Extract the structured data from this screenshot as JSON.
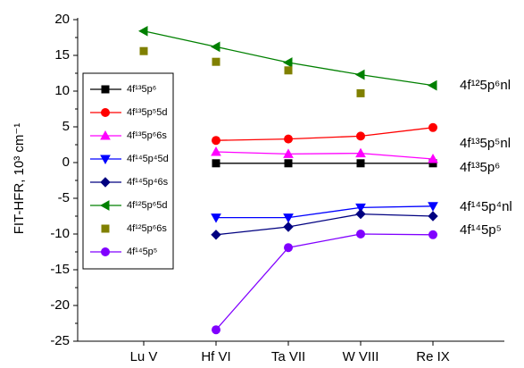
{
  "chart_data": {
    "type": "line",
    "y_label": "FIT-HFR, 10³ cm⁻¹",
    "categories": [
      "Lu V",
      "Hf VI",
      "Ta VII",
      "W VIII",
      "Re IX"
    ],
    "ylim": [
      -25,
      20
    ],
    "yticks": [
      -25,
      -20,
      -15,
      -10,
      -5,
      0,
      5,
      10,
      15,
      20
    ],
    "series": [
      {
        "name": "4f¹³5p⁶",
        "color": "#000000",
        "marker": "square",
        "line": true,
        "values": [
          null,
          -0.1,
          -0.1,
          -0.1,
          -0.1
        ]
      },
      {
        "name": "4f¹³5p⁵5d",
        "color": "#ff0000",
        "marker": "circle",
        "line": true,
        "values": [
          null,
          3.1,
          3.3,
          3.7,
          4.9
        ]
      },
      {
        "name": "4f¹³5p⁶6s",
        "color": "#ff00ff",
        "marker": "triangle-up",
        "line": true,
        "values": [
          null,
          1.5,
          1.2,
          1.3,
          0.5
        ]
      },
      {
        "name": "4f¹⁴5p⁴5d",
        "color": "#0000ff",
        "marker": "triangle-down",
        "line": true,
        "values": [
          null,
          -7.7,
          -7.7,
          -6.3,
          -6.1
        ]
      },
      {
        "name": "4f¹⁴5p⁴6s",
        "color": "#000080",
        "marker": "diamond",
        "line": true,
        "values": [
          null,
          -10.1,
          -9.0,
          -7.2,
          -7.5
        ]
      },
      {
        "name": "4f¹²5p⁶5d",
        "color": "#008000",
        "marker": "triangle-left",
        "line": true,
        "values": [
          18.4,
          16.2,
          14.0,
          12.3,
          10.8
        ]
      },
      {
        "name": "4f¹²5p⁶6s",
        "color": "#808000",
        "marker": "square",
        "line": false,
        "values": [
          15.6,
          14.1,
          12.9,
          9.7,
          null
        ]
      },
      {
        "name": "4f¹⁴5p⁵",
        "color": "#8000ff",
        "marker": "circle",
        "line": true,
        "values": [
          null,
          -23.4,
          -11.9,
          -10.0,
          -10.1
        ]
      }
    ],
    "annotations": [
      "4f¹²5p⁶nl",
      "4f¹³5p⁵nl",
      "4f¹³5p⁶",
      "4f¹⁴5p⁴nl",
      "4f¹⁴5p⁵"
    ]
  }
}
